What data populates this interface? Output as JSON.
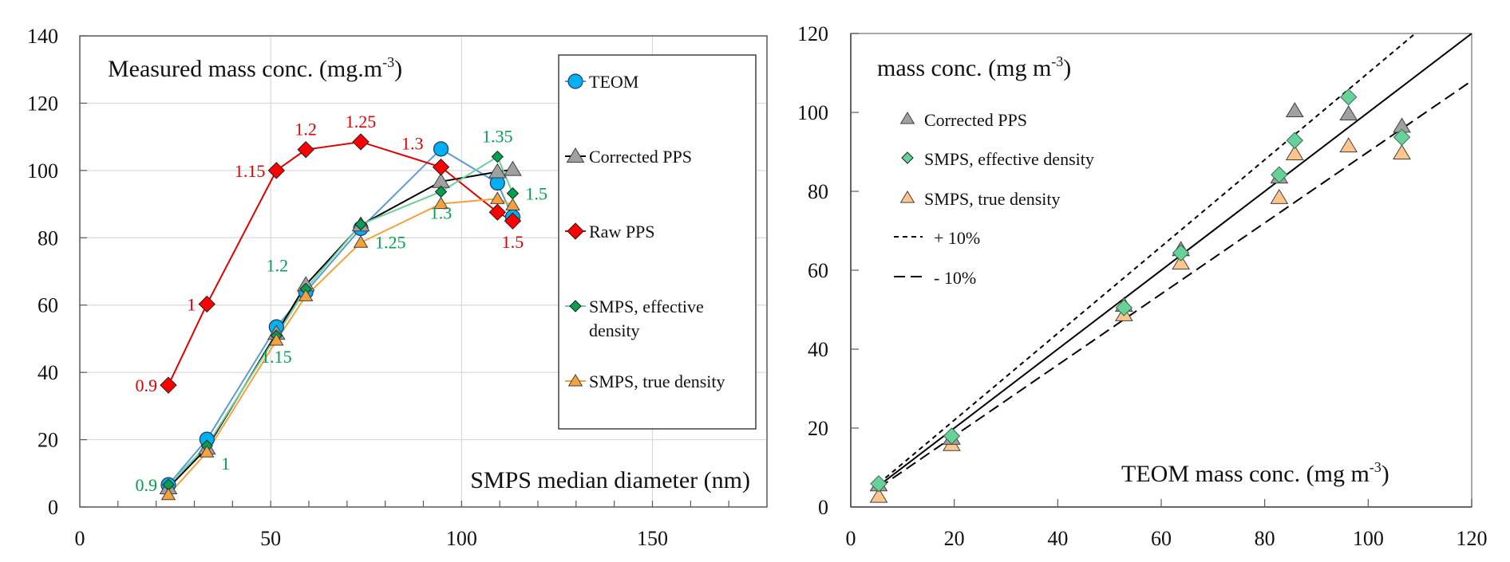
{
  "chart_data": [
    {
      "type": "line",
      "title": "Measured mass conc. (mg.m-3)",
      "title_main": "Measured mass conc. (mg.m",
      "title_sup": "-3",
      "title_end": ")",
      "xlabel": "SMPS median diameter (nm)",
      "ylabel": "",
      "xlim": [
        0,
        180
      ],
      "ylim": [
        0,
        140
      ],
      "xticks": [
        0,
        50,
        100,
        150
      ],
      "xtick_labels": [
        "0",
        "50",
        "100",
        "150"
      ],
      "xminor_step": 10,
      "yticks": [
        0,
        20,
        40,
        60,
        80,
        100,
        120,
        140
      ],
      "ytick_labels": [
        "0",
        "20",
        "40",
        "60",
        "80",
        "100",
        "120",
        "140"
      ],
      "grid": true,
      "legend_position": "right",
      "x": [
        23.2,
        33.3,
        51.5,
        59.2,
        73.6,
        94.6,
        109.4,
        113.4
      ],
      "series": [
        {
          "name": "TEOM",
          "marker": "circle",
          "color": "#00B0F0",
          "line_color": "#5B9BD5",
          "values": [
            6.6,
            20.1,
            53.5,
            63.9,
            82.8,
            106.4,
            96.3,
            86.2
          ]
        },
        {
          "name": "Corrected PPS",
          "marker": "triangle",
          "color": "#A0A0A0",
          "line_color": "#000000",
          "values": [
            5.7,
            17.5,
            51.6,
            66.0,
            83.8,
            96.7,
            99.6,
            100.3
          ]
        },
        {
          "name": "Raw PPS",
          "marker": "diamond",
          "color": "#FF0000",
          "line_color": "#E00000",
          "x": [
            23.2,
            33.3,
            51.5,
            59.2,
            73.6,
            94.6,
            109.4,
            113.4
          ],
          "values": [
            36.2,
            60.3,
            100.0,
            106.2,
            108.5,
            101.0,
            87.6,
            85.0
          ]
        },
        {
          "name": "SMPS, effective density",
          "marker": "diamond-small",
          "color": "#00A050",
          "line_color": "#6CCF9A",
          "values": [
            6.6,
            18.2,
            50.9,
            64.8,
            84.0,
            93.7,
            104.1,
            93.2
          ]
        },
        {
          "name": "SMPS, true density",
          "marker": "triangle-small",
          "color": "#F7A13D",
          "line_color": "#F7A13D",
          "values": [
            3.6,
            16.3,
            49.5,
            62.7,
            78.6,
            90.1,
            91.6,
            89.7
          ]
        }
      ],
      "legend_entries": [
        "TEOM",
        "Corrected PPS",
        "Raw PPS",
        "SMPS, effective density",
        "SMPS, true density"
      ],
      "legend_entry_lines": [
        [
          "TEOM"
        ],
        [
          "Corrected PPS"
        ],
        [
          "Raw PPS"
        ],
        [
          "SMPS, effective",
          "density"
        ],
        [
          "SMPS, true density"
        ]
      ],
      "annotations": [
        {
          "text": "0.9",
          "series": "Raw PPS",
          "color": "#E00000",
          "x": 23.2,
          "y": 36.2,
          "pos": "left"
        },
        {
          "text": "1",
          "series": "Raw PPS",
          "color": "#E00000",
          "x": 33.3,
          "y": 60.3,
          "pos": "left"
        },
        {
          "text": "1.15",
          "series": "Raw PPS",
          "color": "#E00000",
          "x": 51.5,
          "y": 100.0,
          "pos": "left"
        },
        {
          "text": "1.2",
          "series": "Raw PPS",
          "color": "#E00000",
          "x": 59.2,
          "y": 106.2,
          "pos": "above"
        },
        {
          "text": "1.25",
          "series": "Raw PPS",
          "color": "#E00000",
          "x": 73.6,
          "y": 108.5,
          "pos": "above"
        },
        {
          "text": "1.3",
          "series": "Raw PPS",
          "color": "#E00000",
          "x": 94.6,
          "y": 101.0,
          "pos": "above-left"
        },
        {
          "text": "1.5",
          "series": "Raw PPS",
          "color": "#E00000",
          "x": 113.4,
          "y": 85.0,
          "pos": "below"
        },
        {
          "text": "0.9",
          "series": "SMPS, effective density",
          "color": "#00A050",
          "x": 23.2,
          "y": 6.6,
          "pos": "left"
        },
        {
          "text": "1",
          "series": "SMPS, effective density",
          "color": "#00A050",
          "x": 33.3,
          "y": 18.2,
          "pos": "below-right"
        },
        {
          "text": "1.15",
          "series": "SMPS, effective density",
          "color": "#00A050",
          "x": 51.5,
          "y": 50.9,
          "pos": "below"
        },
        {
          "text": "1.2",
          "series": "SMPS, effective density",
          "color": "#00A050",
          "x": 59.2,
          "y": 64.8,
          "pos": "above-left"
        },
        {
          "text": "1.25",
          "series": "SMPS, effective density",
          "color": "#00A050",
          "x": 73.6,
          "y": 84.0,
          "pos": "below-right"
        },
        {
          "text": "1.3",
          "series": "SMPS, effective density",
          "color": "#00A050",
          "x": 94.6,
          "y": 93.7,
          "pos": "below"
        },
        {
          "text": "1.35",
          "series": "SMPS, effective density",
          "color": "#00A050",
          "x": 109.4,
          "y": 104.1,
          "pos": "above"
        },
        {
          "text": "1.5",
          "series": "SMPS, effective density",
          "color": "#00A050",
          "x": 113.4,
          "y": 93.2,
          "pos": "right"
        }
      ]
    },
    {
      "type": "scatter",
      "title": "mass conc. (mg m-3)",
      "title_main": "mass conc. (mg m",
      "title_sup": "-3",
      "title_end": ")",
      "xlabel": "TEOM mass conc.  (mg m-3)",
      "xlabel_main": "TEOM mass conc.  (mg m",
      "xlabel_sup": "-3",
      "xlabel_end": ")",
      "ylabel": "",
      "xlim": [
        0,
        120
      ],
      "ylim": [
        0,
        120
      ],
      "xticks": [
        0,
        20,
        40,
        60,
        80,
        100,
        120
      ],
      "xtick_labels": [
        "0",
        "20",
        "40",
        "60",
        "80",
        "100",
        "120"
      ],
      "yticks": [
        0,
        20,
        40,
        60,
        80,
        100,
        120
      ],
      "ytick_labels": [
        "0",
        "20",
        "40",
        "60",
        "80",
        "100",
        "120"
      ],
      "grid": false,
      "legend_position": "top-left",
      "x": [
        5.4,
        19.5,
        52.8,
        63.8,
        82.8,
        85.8,
        96.2,
        106.5
      ],
      "series": [
        {
          "name": "Corrected PPS",
          "marker": "triangle",
          "color": "#A0A0A0",
          "values": [
            5.6,
            17.4,
            51.1,
            65.2,
            83.6,
            100.4,
            99.6,
            96.5
          ]
        },
        {
          "name": "SMPS, effective density",
          "marker": "diamond",
          "color": "#66D29A",
          "values": [
            5.9,
            18.0,
            50.5,
            64.4,
            84.2,
            92.9,
            103.9,
            93.7
          ]
        },
        {
          "name": "SMPS, true density",
          "marker": "triangle",
          "color": "#FFC58A",
          "values": [
            2.7,
            15.8,
            48.7,
            61.8,
            78.4,
            89.5,
            91.5,
            89.7
          ]
        }
      ],
      "reference_lines": [
        {
          "name": "1:1",
          "slope": 1.0,
          "style": "solid",
          "x_range": [
            5.4,
            120
          ]
        },
        {
          "name": "+ 10%",
          "slope": 1.1,
          "style": "dotted",
          "x_range": [
            5.4,
            120
          ]
        },
        {
          "name": "- 10%",
          "slope": 0.9,
          "style": "dashed",
          "x_range": [
            5.4,
            120
          ]
        }
      ],
      "legend_entries": [
        "Corrected PPS",
        "SMPS, effective density",
        "SMPS, true density",
        "+ 10%",
        "- 10%"
      ]
    }
  ]
}
